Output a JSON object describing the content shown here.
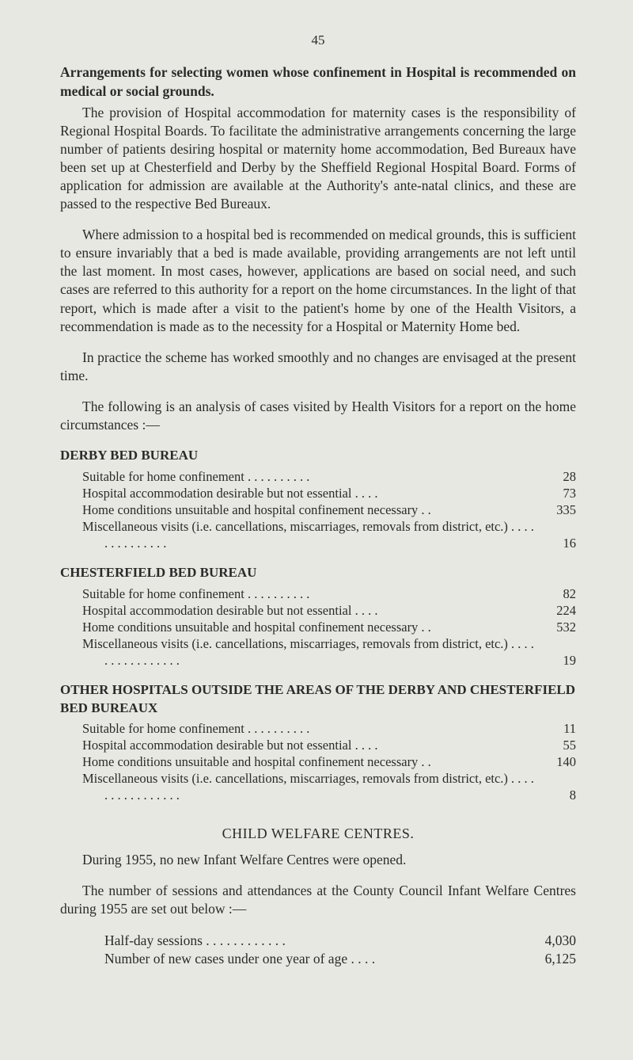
{
  "page_number": "45",
  "title": "Arrangements for selecting women whose confinement in Hospital is recommended on medical or social grounds.",
  "para1": "The provision of Hospital accommodation for maternity cases is the responsibility of Regional Hospital Boards. To facilitate the administrative arrangements concerning the large number of patients desiring hospital or maternity home accommodation, Bed Bureaux have been set up at Chesterfield and Derby by the Sheffield Regional Hospital Board. Forms of application for admission are available at the Authority's ante-natal clinics, and these are passed to the respective Bed Bureaux.",
  "para2": "Where admission to a hospital bed is recommended on medical grounds, this is sufficient to ensure invariably that a bed is made available, providing arrangements are not left until the last moment. In most cases, however, applications are based on social need, and such cases are referred to this authority for a report on the home circumstances. In the light of that report, which is made after a visit to the patient's home by one of the Health Visitors, a recommendation is made as to the necessity for a Hospital or Maternity Home bed.",
  "para3": "In practice the scheme has worked smoothly and no changes are envisaged at the present time.",
  "para4": "The following is an analysis of cases visited by Health Visitors for a report on the home circumstances :—",
  "sections": [
    {
      "heading": "DERBY BED BUREAU",
      "items": [
        {
          "label": "Suitable for home confinement   . .   . .   . .   . .   . .",
          "value": "28"
        },
        {
          "label": "Hospital accommodation desirable but not essential    . .   . .",
          "value": "73"
        },
        {
          "label": "Home conditions unsuitable and hospital confinement necessary . .",
          "value": "335"
        },
        {
          "label": "Miscellaneous visits (i.e. cancellations, miscarriages, removals from district, etc.)    . .   . .   . .   . .   . .   . .   . .",
          "value": "16"
        }
      ]
    },
    {
      "heading": "CHESTERFIELD BED BUREAU",
      "items": [
        {
          "label": "Suitable for home confinement   . .   . .   . .   . .   . .",
          "value": "82"
        },
        {
          "label": "Hospital accommodation desirable but not essential    . .   . .",
          "value": "224"
        },
        {
          "label": "Home conditions unsuitable and hospital confinement necessary . .",
          "value": "532"
        },
        {
          "label": "Miscellaneous visits (i.e. cancellations, miscarriages, removals from district, etc.) . .   . .   . .   . .   . .   . .   . .   . .",
          "value": "19"
        }
      ]
    },
    {
      "heading": "OTHER HOSPITALS OUTSIDE THE AREAS OF THE DERBY AND CHESTERFIELD BED BUREAUX",
      "items": [
        {
          "label": "Suitable for home confinement   . .   . .   . .   . .   . .",
          "value": "11"
        },
        {
          "label": "Hospital accommodation desirable but not essential    . .   . .",
          "value": "55"
        },
        {
          "label": "Home conditions unsuitable and hospital confinement necessary . .",
          "value": "140"
        },
        {
          "label": "Miscellaneous visits (i.e. cancellations, miscarriages, removals from district, etc.) . .   . .   . .   . .   . .   . .   . .   . .",
          "value": "8"
        }
      ]
    }
  ],
  "child_welfare": {
    "heading": "CHILD WELFARE CENTRES.",
    "para1": "During 1955, no new Infant Welfare Centres were opened.",
    "para2": "The number of sessions and attendances at the County Council Infant Welfare Centres during 1955 are set out below :—",
    "stats": [
      {
        "label": "Half-day sessions . .   . .   . .   . .   . .   . .",
        "value": "4,030"
      },
      {
        "label": "Number of new cases under one year of age   . .   . .",
        "value": "6,125"
      }
    ]
  },
  "colors": {
    "background": "#e8e8e2",
    "text": "#2a2a2a"
  },
  "typography": {
    "font_family": "Times New Roman",
    "base_font_size": 17.5,
    "item_font_size": 16.5,
    "heading_font_size": 18
  }
}
